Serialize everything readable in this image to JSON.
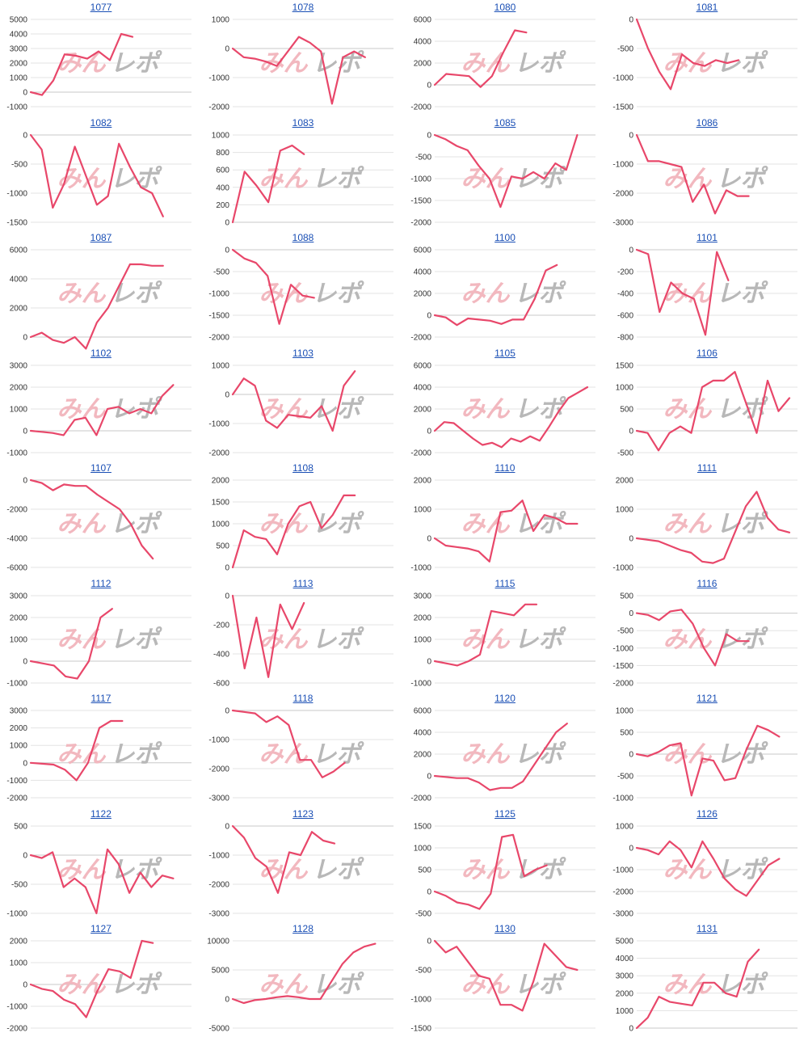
{
  "colors": {
    "line": "#e8476a",
    "grid": "#e3e3e3",
    "axis": "#c9c9c9",
    "title": "#1a4fb5",
    "watermark_a": "#f2b8bf",
    "watermark_b": "#b8b8b8"
  },
  "watermark": {
    "a": "みん",
    "b": "レポ"
  },
  "chart_data": [
    {
      "type": "line",
      "title": "1077",
      "yticks": [
        5000,
        4000,
        3000,
        2000,
        1000,
        0,
        -1000
      ],
      "values": [
        0,
        -200,
        800,
        2600,
        2500,
        2300,
        2800,
        2200,
        4000,
        3800
      ]
    },
    {
      "type": "line",
      "title": "1078",
      "yticks": [
        1000,
        0,
        -1000,
        -2000
      ],
      "values": [
        0,
        -300,
        -350,
        -450,
        -600,
        -100,
        400,
        200,
        -100,
        -1900,
        -300,
        -100,
        -300
      ]
    },
    {
      "type": "line",
      "title": "1080",
      "yticks": [
        6000,
        4000,
        2000,
        0,
        -2000
      ],
      "values": [
        0,
        1000,
        900,
        800,
        -200,
        800,
        3000,
        5000,
        4800
      ]
    },
    {
      "type": "line",
      "title": "1081",
      "yticks": [
        0,
        -500,
        -1000,
        -1500
      ],
      "values": [
        0,
        -500,
        -900,
        -1200,
        -600,
        -750,
        -800,
        -700,
        -750,
        -700
      ]
    },
    {
      "type": "line",
      "title": "1082",
      "yticks": [
        0,
        -500,
        -1000,
        -1500
      ],
      "values": [
        0,
        -250,
        -1250,
        -850,
        -200,
        -700,
        -1200,
        -1050,
        -150,
        -550,
        -900,
        -1000,
        -1400
      ]
    },
    {
      "type": "line",
      "title": "1083",
      "yticks": [
        1000,
        800,
        600,
        400,
        200,
        0
      ],
      "values": [
        0,
        580,
        420,
        230,
        820,
        880,
        780
      ]
    },
    {
      "type": "line",
      "title": "1085",
      "yticks": [
        0,
        -500,
        -1000,
        -1500,
        -2000
      ],
      "values": [
        0,
        -100,
        -250,
        -350,
        -700,
        -1000,
        -1650,
        -950,
        -1000,
        -850,
        -1000,
        -650,
        -800,
        0
      ]
    },
    {
      "type": "line",
      "title": "1086",
      "yticks": [
        0,
        -1000,
        -2000,
        -3000
      ],
      "values": [
        0,
        -900,
        -900,
        -1000,
        -1100,
        -2300,
        -1700,
        -2700,
        -1900,
        -2100,
        -2100
      ]
    },
    {
      "type": "line",
      "title": "1087",
      "yticks": [
        6000,
        4000,
        2000,
        0
      ],
      "values": [
        0,
        300,
        -200,
        -400,
        0,
        -800,
        1000,
        2000,
        3500,
        5000,
        5000,
        4900,
        4900
      ]
    },
    {
      "type": "line",
      "title": "1088",
      "yticks": [
        0,
        -500,
        -1000,
        -1500,
        -2000
      ],
      "values": [
        0,
        -200,
        -300,
        -600,
        -1700,
        -800,
        -1050,
        -1100
      ]
    },
    {
      "type": "line",
      "title": "1100",
      "yticks": [
        6000,
        4000,
        2000,
        0,
        -2000
      ],
      "values": [
        0,
        -200,
        -900,
        -300,
        -400,
        -500,
        -800,
        -400,
        -400,
        1500,
        4100,
        4600
      ]
    },
    {
      "type": "line",
      "title": "1101",
      "yticks": [
        0,
        -200,
        -400,
        -600,
        -800
      ],
      "values": [
        0,
        -40,
        -570,
        -300,
        -400,
        -450,
        -780,
        -20,
        -280
      ]
    },
    {
      "type": "line",
      "title": "1102",
      "yticks": [
        3000,
        2000,
        1000,
        0,
        -1000
      ],
      "values": [
        0,
        -50,
        -100,
        -200,
        500,
        600,
        -200,
        1000,
        1100,
        800,
        1000,
        800,
        1600,
        2100
      ]
    },
    {
      "type": "line",
      "title": "1103",
      "yticks": [
        1000,
        0,
        -1000,
        -2000
      ],
      "values": [
        0,
        550,
        300,
        -900,
        -1150,
        -700,
        -750,
        -800,
        -400,
        -1250,
        300,
        800
      ]
    },
    {
      "type": "line",
      "title": "1105",
      "yticks": [
        6000,
        4000,
        2000,
        0,
        -2000
      ],
      "values": [
        0,
        800,
        700,
        0,
        -700,
        -1300,
        -1100,
        -1500,
        -700,
        -1000,
        -500,
        -900,
        400,
        1800,
        3000,
        3500,
        4000
      ]
    },
    {
      "type": "line",
      "title": "1106",
      "yticks": [
        1500,
        1000,
        500,
        0,
        -500
      ],
      "values": [
        0,
        -50,
        -450,
        -50,
        100,
        -50,
        1000,
        1150,
        1150,
        1350,
        650,
        -50,
        1150,
        450,
        750
      ]
    },
    {
      "type": "line",
      "title": "1107",
      "yticks": [
        0,
        -2000,
        -4000,
        -6000
      ],
      "values": [
        0,
        -200,
        -700,
        -300,
        -400,
        -400,
        -1000,
        -1500,
        -2000,
        -3000,
        -4500,
        -5400
      ]
    },
    {
      "type": "line",
      "title": "1108",
      "yticks": [
        2000,
        1500,
        1000,
        500,
        0
      ],
      "values": [
        0,
        850,
        700,
        650,
        300,
        1000,
        1400,
        1500,
        900,
        1200,
        1650,
        1650
      ]
    },
    {
      "type": "line",
      "title": "1110",
      "yticks": [
        2000,
        1000,
        0,
        -1000
      ],
      "values": [
        0,
        -250,
        -300,
        -350,
        -450,
        -800,
        900,
        950,
        1300,
        250,
        800,
        700,
        500,
        500
      ]
    },
    {
      "type": "line",
      "title": "1111",
      "yticks": [
        2000,
        1000,
        0,
        -1000
      ],
      "values": [
        0,
        -50,
        -100,
        -250,
        -400,
        -500,
        -800,
        -850,
        -700,
        200,
        1100,
        1600,
        700,
        300,
        200
      ]
    },
    {
      "type": "line",
      "title": "1112",
      "yticks": [
        3000,
        2000,
        1000,
        0,
        -1000
      ],
      "values": [
        0,
        -100,
        -200,
        -700,
        -800,
        0,
        2000,
        2400
      ]
    },
    {
      "type": "line",
      "title": "1113",
      "yticks": [
        0,
        -200,
        -400,
        -600
      ],
      "values": [
        0,
        -500,
        -150,
        -560,
        -60,
        -230,
        -50
      ]
    },
    {
      "type": "line",
      "title": "1115",
      "yticks": [
        3000,
        2000,
        1000,
        0,
        -1000
      ],
      "values": [
        0,
        -100,
        -200,
        0,
        300,
        2300,
        2200,
        2100,
        2600,
        2600
      ]
    },
    {
      "type": "line",
      "title": "1116",
      "yticks": [
        500,
        0,
        -500,
        -1000,
        -1500,
        -2000
      ],
      "values": [
        0,
        -50,
        -200,
        50,
        100,
        -300,
        -1000,
        -1500,
        -600,
        -800,
        -800
      ]
    },
    {
      "type": "line",
      "title": "1117",
      "yticks": [
        3000,
        2000,
        1000,
        0,
        -1000,
        -2000
      ],
      "values": [
        0,
        -50,
        -100,
        -400,
        -1000,
        0,
        2000,
        2400,
        2400
      ]
    },
    {
      "type": "line",
      "title": "1118",
      "yticks": [
        0,
        -1000,
        -2000,
        -3000
      ],
      "values": [
        0,
        -50,
        -100,
        -400,
        -200,
        -500,
        -1700,
        -1700,
        -2300,
        -2100,
        -1800
      ]
    },
    {
      "type": "line",
      "title": "1120",
      "yticks": [
        6000,
        4000,
        2000,
        0,
        -2000
      ],
      "values": [
        0,
        -100,
        -200,
        -200,
        -600,
        -1300,
        -1100,
        -1100,
        -500,
        1000,
        2500,
        4000,
        4800
      ]
    },
    {
      "type": "line",
      "title": "1121",
      "yticks": [
        1000,
        500,
        0,
        -500,
        -1000
      ],
      "values": [
        0,
        -50,
        50,
        200,
        250,
        -950,
        -100,
        -150,
        -600,
        -550,
        100,
        650,
        550,
        400
      ]
    },
    {
      "type": "line",
      "title": "1122",
      "yticks": [
        500,
        0,
        -500,
        -1000
      ],
      "values": [
        0,
        -50,
        50,
        -550,
        -400,
        -550,
        -1000,
        100,
        -150,
        -650,
        -300,
        -550,
        -350,
        -400
      ]
    },
    {
      "type": "line",
      "title": "1123",
      "yticks": [
        0,
        -1000,
        -2000,
        -3000
      ],
      "values": [
        0,
        -400,
        -1100,
        -1400,
        -2300,
        -900,
        -1000,
        -200,
        -500,
        -600
      ]
    },
    {
      "type": "line",
      "title": "1125",
      "yticks": [
        1500,
        1000,
        500,
        0,
        -500
      ],
      "values": [
        0,
        -100,
        -250,
        -300,
        -400,
        -50,
        1250,
        1300,
        350,
        500,
        600
      ]
    },
    {
      "type": "line",
      "title": "1126",
      "yticks": [
        1000,
        0,
        -1000,
        -2000,
        -3000
      ],
      "values": [
        0,
        -100,
        -300,
        300,
        -100,
        -900,
        300,
        -500,
        -1400,
        -1900,
        -2200,
        -1500,
        -800,
        -500
      ]
    },
    {
      "type": "line",
      "title": "1127",
      "yticks": [
        2000,
        1000,
        0,
        -1000,
        -2000
      ],
      "values": [
        0,
        -200,
        -300,
        -700,
        -900,
        -1500,
        -300,
        700,
        600,
        300,
        2000,
        1900
      ]
    },
    {
      "type": "line",
      "title": "1128",
      "yticks": [
        10000,
        5000,
        0,
        -5000
      ],
      "values": [
        0,
        -700,
        -200,
        0,
        300,
        500,
        300,
        0,
        0,
        3000,
        6000,
        8000,
        9000,
        9500
      ]
    },
    {
      "type": "line",
      "title": "1130",
      "yticks": [
        0,
        -500,
        -1000,
        -1500
      ],
      "values": [
        0,
        -200,
        -100,
        -350,
        -600,
        -650,
        -1100,
        -1100,
        -1200,
        -700,
        -50,
        -250,
        -450,
        -500
      ]
    },
    {
      "type": "line",
      "title": "1131",
      "yticks": [
        5000,
        4000,
        3000,
        2000,
        1000,
        0
      ],
      "values": [
        0,
        600,
        1800,
        1500,
        1400,
        1300,
        2600,
        2600,
        2000,
        1800,
        3800,
        4500
      ]
    }
  ]
}
